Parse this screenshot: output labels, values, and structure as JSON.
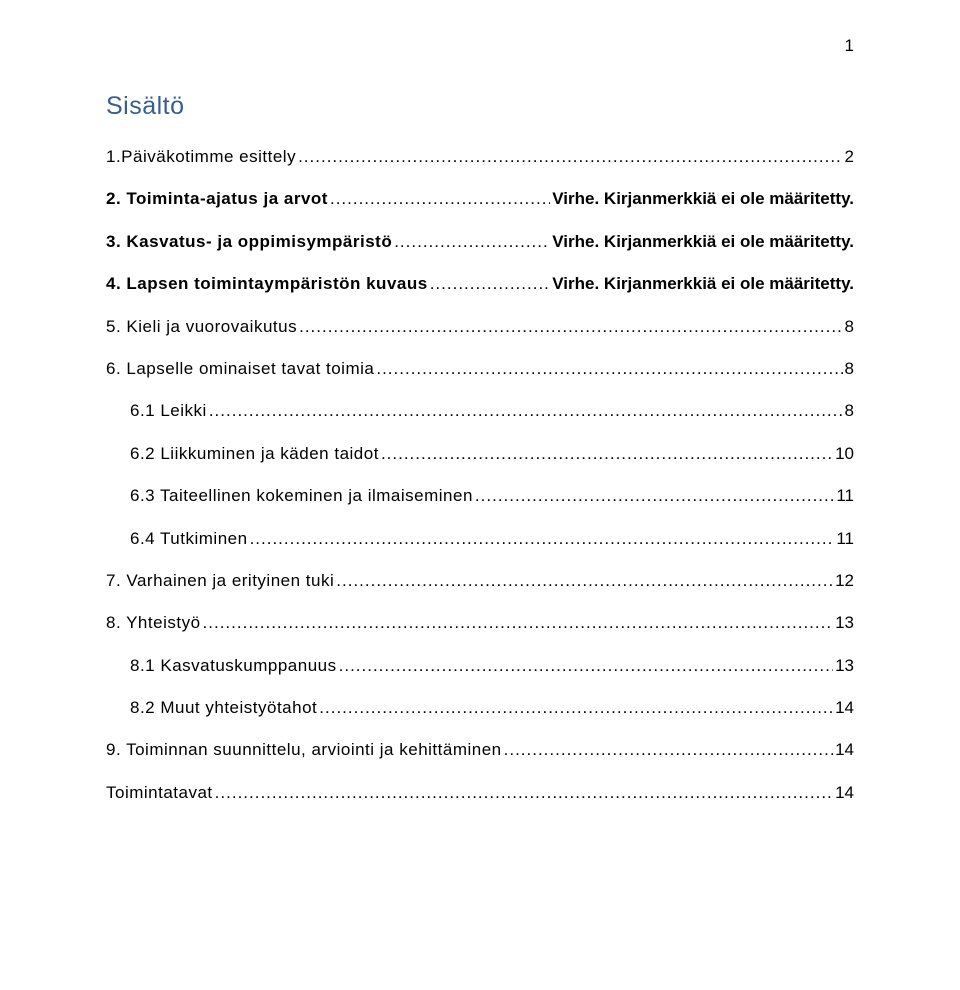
{
  "pageNumber": "1",
  "heading": "Sisältö",
  "colors": {
    "heading": "#365f91",
    "text": "#000000",
    "background": "#ffffff"
  },
  "fontSizes": {
    "heading": 25,
    "body": 17
  },
  "toc": [
    {
      "label": "1.Päiväkotimme esittely",
      "page": "2",
      "bold": false,
      "indent": false
    },
    {
      "label": "2. Toiminta-ajatus ja arvot",
      "page": "Virhe. Kirjanmerkkiä ei ole määritetty.",
      "bold": true,
      "indent": false
    },
    {
      "label": "3. Kasvatus- ja oppimisympäristö",
      "page": "Virhe. Kirjanmerkkiä ei ole määritetty.",
      "bold": true,
      "indent": false
    },
    {
      "label": "4. Lapsen toimintaympäristön kuvaus",
      "page": "Virhe. Kirjanmerkkiä ei ole määritetty.",
      "bold": true,
      "indent": false
    },
    {
      "label": "5. Kieli ja vuorovaikutus",
      "page": "8",
      "bold": false,
      "indent": false
    },
    {
      "label": "6. Lapselle ominaiset tavat toimia",
      "page": "8",
      "bold": false,
      "indent": false
    },
    {
      "label": "6.1 Leikki",
      "page": "8",
      "bold": false,
      "indent": true
    },
    {
      "label": "6.2 Liikkuminen ja käden taidot",
      "page": "10",
      "bold": false,
      "indent": true
    },
    {
      "label": "6.3 Taiteellinen kokeminen ja ilmaiseminen",
      "page": "11",
      "bold": false,
      "indent": true
    },
    {
      "label": "6.4 Tutkiminen",
      "page": "11",
      "bold": false,
      "indent": true
    },
    {
      "label": "7. Varhainen ja erityinen tuki",
      "page": "12",
      "bold": false,
      "indent": false
    },
    {
      "label": "8. Yhteistyö",
      "page": "13",
      "bold": false,
      "indent": false
    },
    {
      "label": "8.1 Kasvatuskumppanuus",
      "page": "13",
      "bold": false,
      "indent": true
    },
    {
      "label": "8.2 Muut yhteistyötahot",
      "page": "14",
      "bold": false,
      "indent": true
    },
    {
      "label": "9. Toiminnan suunnittelu, arviointi ja kehittäminen",
      "page": "14",
      "bold": false,
      "indent": false
    },
    {
      "label": "Toimintatavat",
      "page": "14",
      "bold": false,
      "indent": false,
      "extraGap": true
    }
  ]
}
